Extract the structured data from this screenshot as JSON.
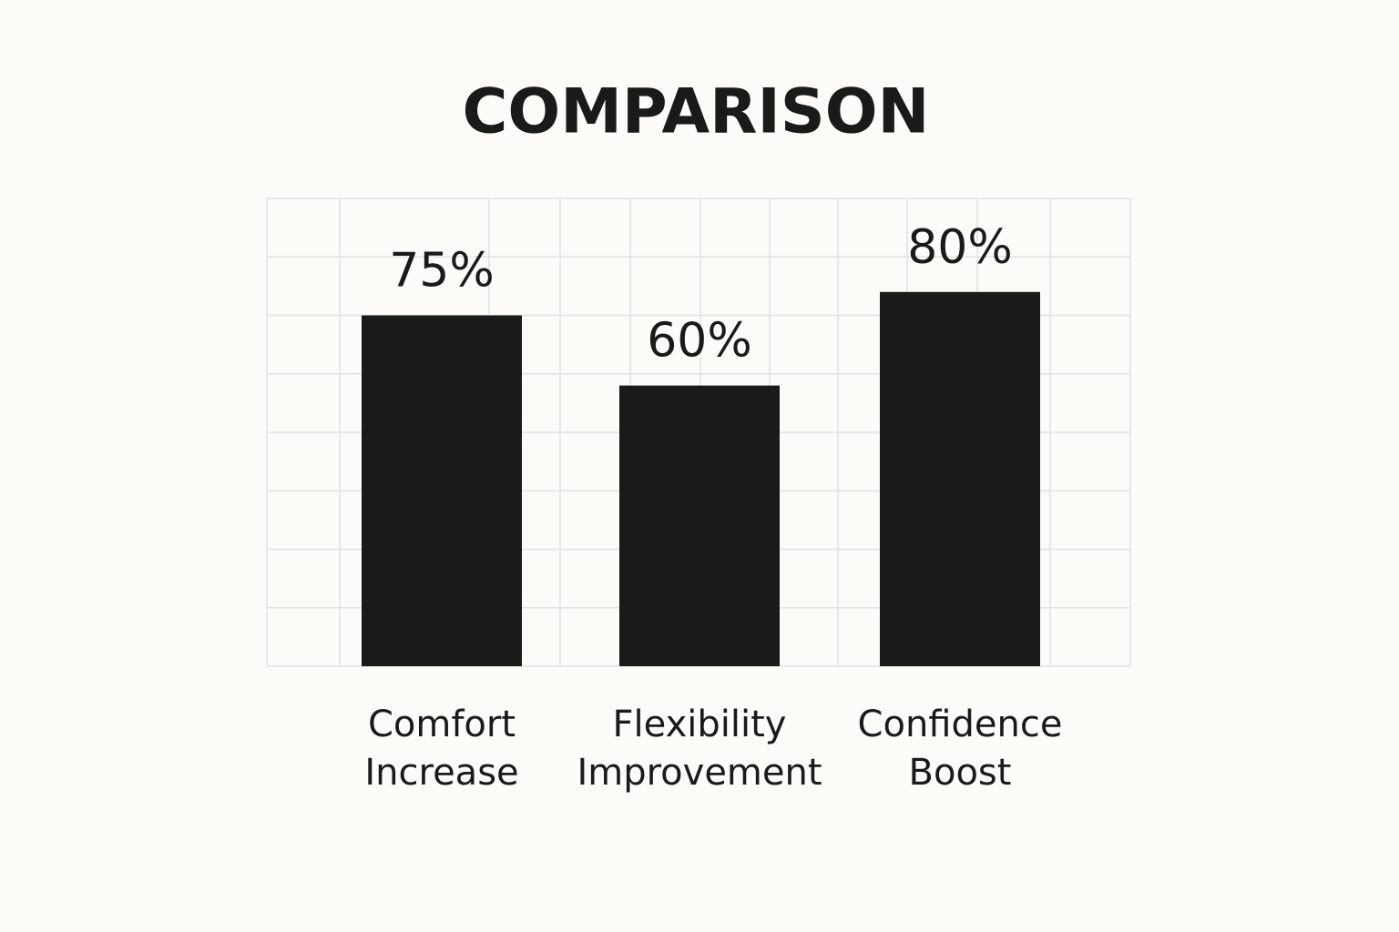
{
  "chart_data": {
    "type": "bar",
    "title": "COMPARISON",
    "categories": [
      "Comfort Increase",
      "Flexibility Improvement",
      "Confidence Boost"
    ],
    "values": [
      75,
      60,
      80
    ],
    "value_labels": [
      "75%",
      "60%",
      "80%"
    ],
    "color": "#1a1a1a",
    "ylim": [
      0,
      100
    ],
    "grid": true
  }
}
